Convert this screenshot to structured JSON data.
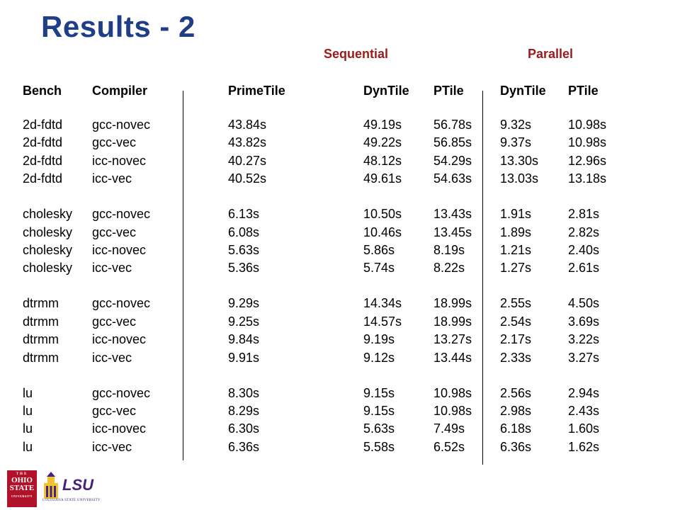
{
  "title": "Results - 2",
  "groups": {
    "sequential": "Sequential",
    "parallel": "Parallel"
  },
  "columns": [
    "Bench",
    "Compiler",
    "PrimeTile",
    "DynTile",
    "PTile",
    "DynTile",
    "PTile"
  ],
  "rows": [
    [
      "2d-fdtd",
      "gcc-novec",
      "43.84s",
      "49.19s",
      "56.78s",
      "9.32s",
      "10.98s"
    ],
    [
      "2d-fdtd",
      "gcc-vec",
      "43.82s",
      "49.22s",
      "56.85s",
      "9.37s",
      "10.98s"
    ],
    [
      "2d-fdtd",
      "icc-novec",
      "40.27s",
      "48.12s",
      "54.29s",
      "13.30s",
      "12.96s"
    ],
    [
      "2d-fdtd",
      "icc-vec",
      "40.52s",
      "49.61s",
      "54.63s",
      "13.03s",
      "13.18s"
    ],
    [
      "cholesky",
      "gcc-novec",
      "6.13s",
      "10.50s",
      "13.43s",
      "1.91s",
      "2.81s"
    ],
    [
      "cholesky",
      "gcc-vec",
      "6.08s",
      "10.46s",
      "13.45s",
      "1.89s",
      "2.82s"
    ],
    [
      "cholesky",
      "icc-novec",
      "5.63s",
      "5.86s",
      "8.19s",
      "1.21s",
      "2.40s"
    ],
    [
      "cholesky",
      "icc-vec",
      "5.36s",
      "5.74s",
      "8.22s",
      "1.27s",
      "2.61s"
    ],
    [
      "dtrmm",
      "gcc-novec",
      "9.29s",
      "14.34s",
      "18.99s",
      "2.55s",
      "4.50s"
    ],
    [
      "dtrmm",
      "gcc-vec",
      "9.25s",
      "14.57s",
      "18.99s",
      "2.54s",
      "3.69s"
    ],
    [
      "dtrmm",
      "icc-novec",
      "9.84s",
      "9.19s",
      "13.27s",
      "2.17s",
      "3.22s"
    ],
    [
      "dtrmm",
      "icc-vec",
      "9.91s",
      "9.12s",
      "13.44s",
      "2.33s",
      "3.27s"
    ],
    [
      "lu",
      "gcc-novec",
      "8.30s",
      "9.15s",
      "10.98s",
      "2.56s",
      "2.94s"
    ],
    [
      "lu",
      "gcc-vec",
      "8.29s",
      "9.15s",
      "10.98s",
      "2.98s",
      "2.43s"
    ],
    [
      "lu",
      "icc-novec",
      "6.30s",
      "5.63s",
      "7.49s",
      "6.18s",
      "1.60s"
    ],
    [
      "lu",
      "icc-vec",
      "6.36s",
      "5.58s",
      "6.52s",
      "6.36s",
      "1.62s"
    ]
  ],
  "logos": {
    "osu_small": "THE",
    "osu_lines": [
      "OHIO",
      "STATE"
    ],
    "osu_bottom": "UNIVERSITY",
    "lsu": "LSU",
    "lsu_sub": "LOUISIANA STATE UNIVERSITY"
  },
  "colors": {
    "title": "#1f3e86",
    "group_label": "#9b1b1b",
    "osu": "#b0122a",
    "lsu": "#46237a"
  }
}
